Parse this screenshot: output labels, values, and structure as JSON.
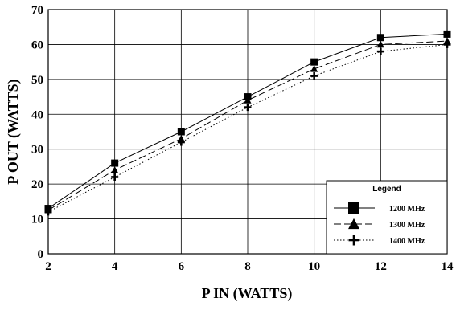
{
  "chart_data": {
    "type": "line",
    "xlabel": "P IN (WATTS)",
    "ylabel": "P OUT (WATTS)",
    "xlim": [
      2,
      14
    ],
    "ylim": [
      0,
      70
    ],
    "x_ticks": [
      2,
      4,
      6,
      8,
      10,
      12,
      14
    ],
    "y_ticks": [
      0,
      10,
      20,
      30,
      40,
      50,
      60,
      70
    ],
    "grid": true,
    "legend": {
      "title": "Legend",
      "placement": "bottom-right"
    },
    "x": [
      2,
      4,
      6,
      8,
      10,
      12,
      14
    ],
    "series": [
      {
        "name": "1200 MHz",
        "values": [
          13,
          26,
          35,
          45,
          55,
          62,
          63
        ],
        "line_style": "solid",
        "marker": "square",
        "color": "#000000"
      },
      {
        "name": "1300 MHz",
        "values": [
          12.5,
          24,
          33,
          44,
          53,
          60,
          61
        ],
        "line_style": "dashed",
        "marker": "triangle",
        "color": "#000000"
      },
      {
        "name": "1400 MHz",
        "values": [
          12,
          22,
          32,
          42,
          51,
          58,
          60
        ],
        "line_style": "dotted",
        "marker": "plus",
        "color": "#000000"
      }
    ]
  }
}
